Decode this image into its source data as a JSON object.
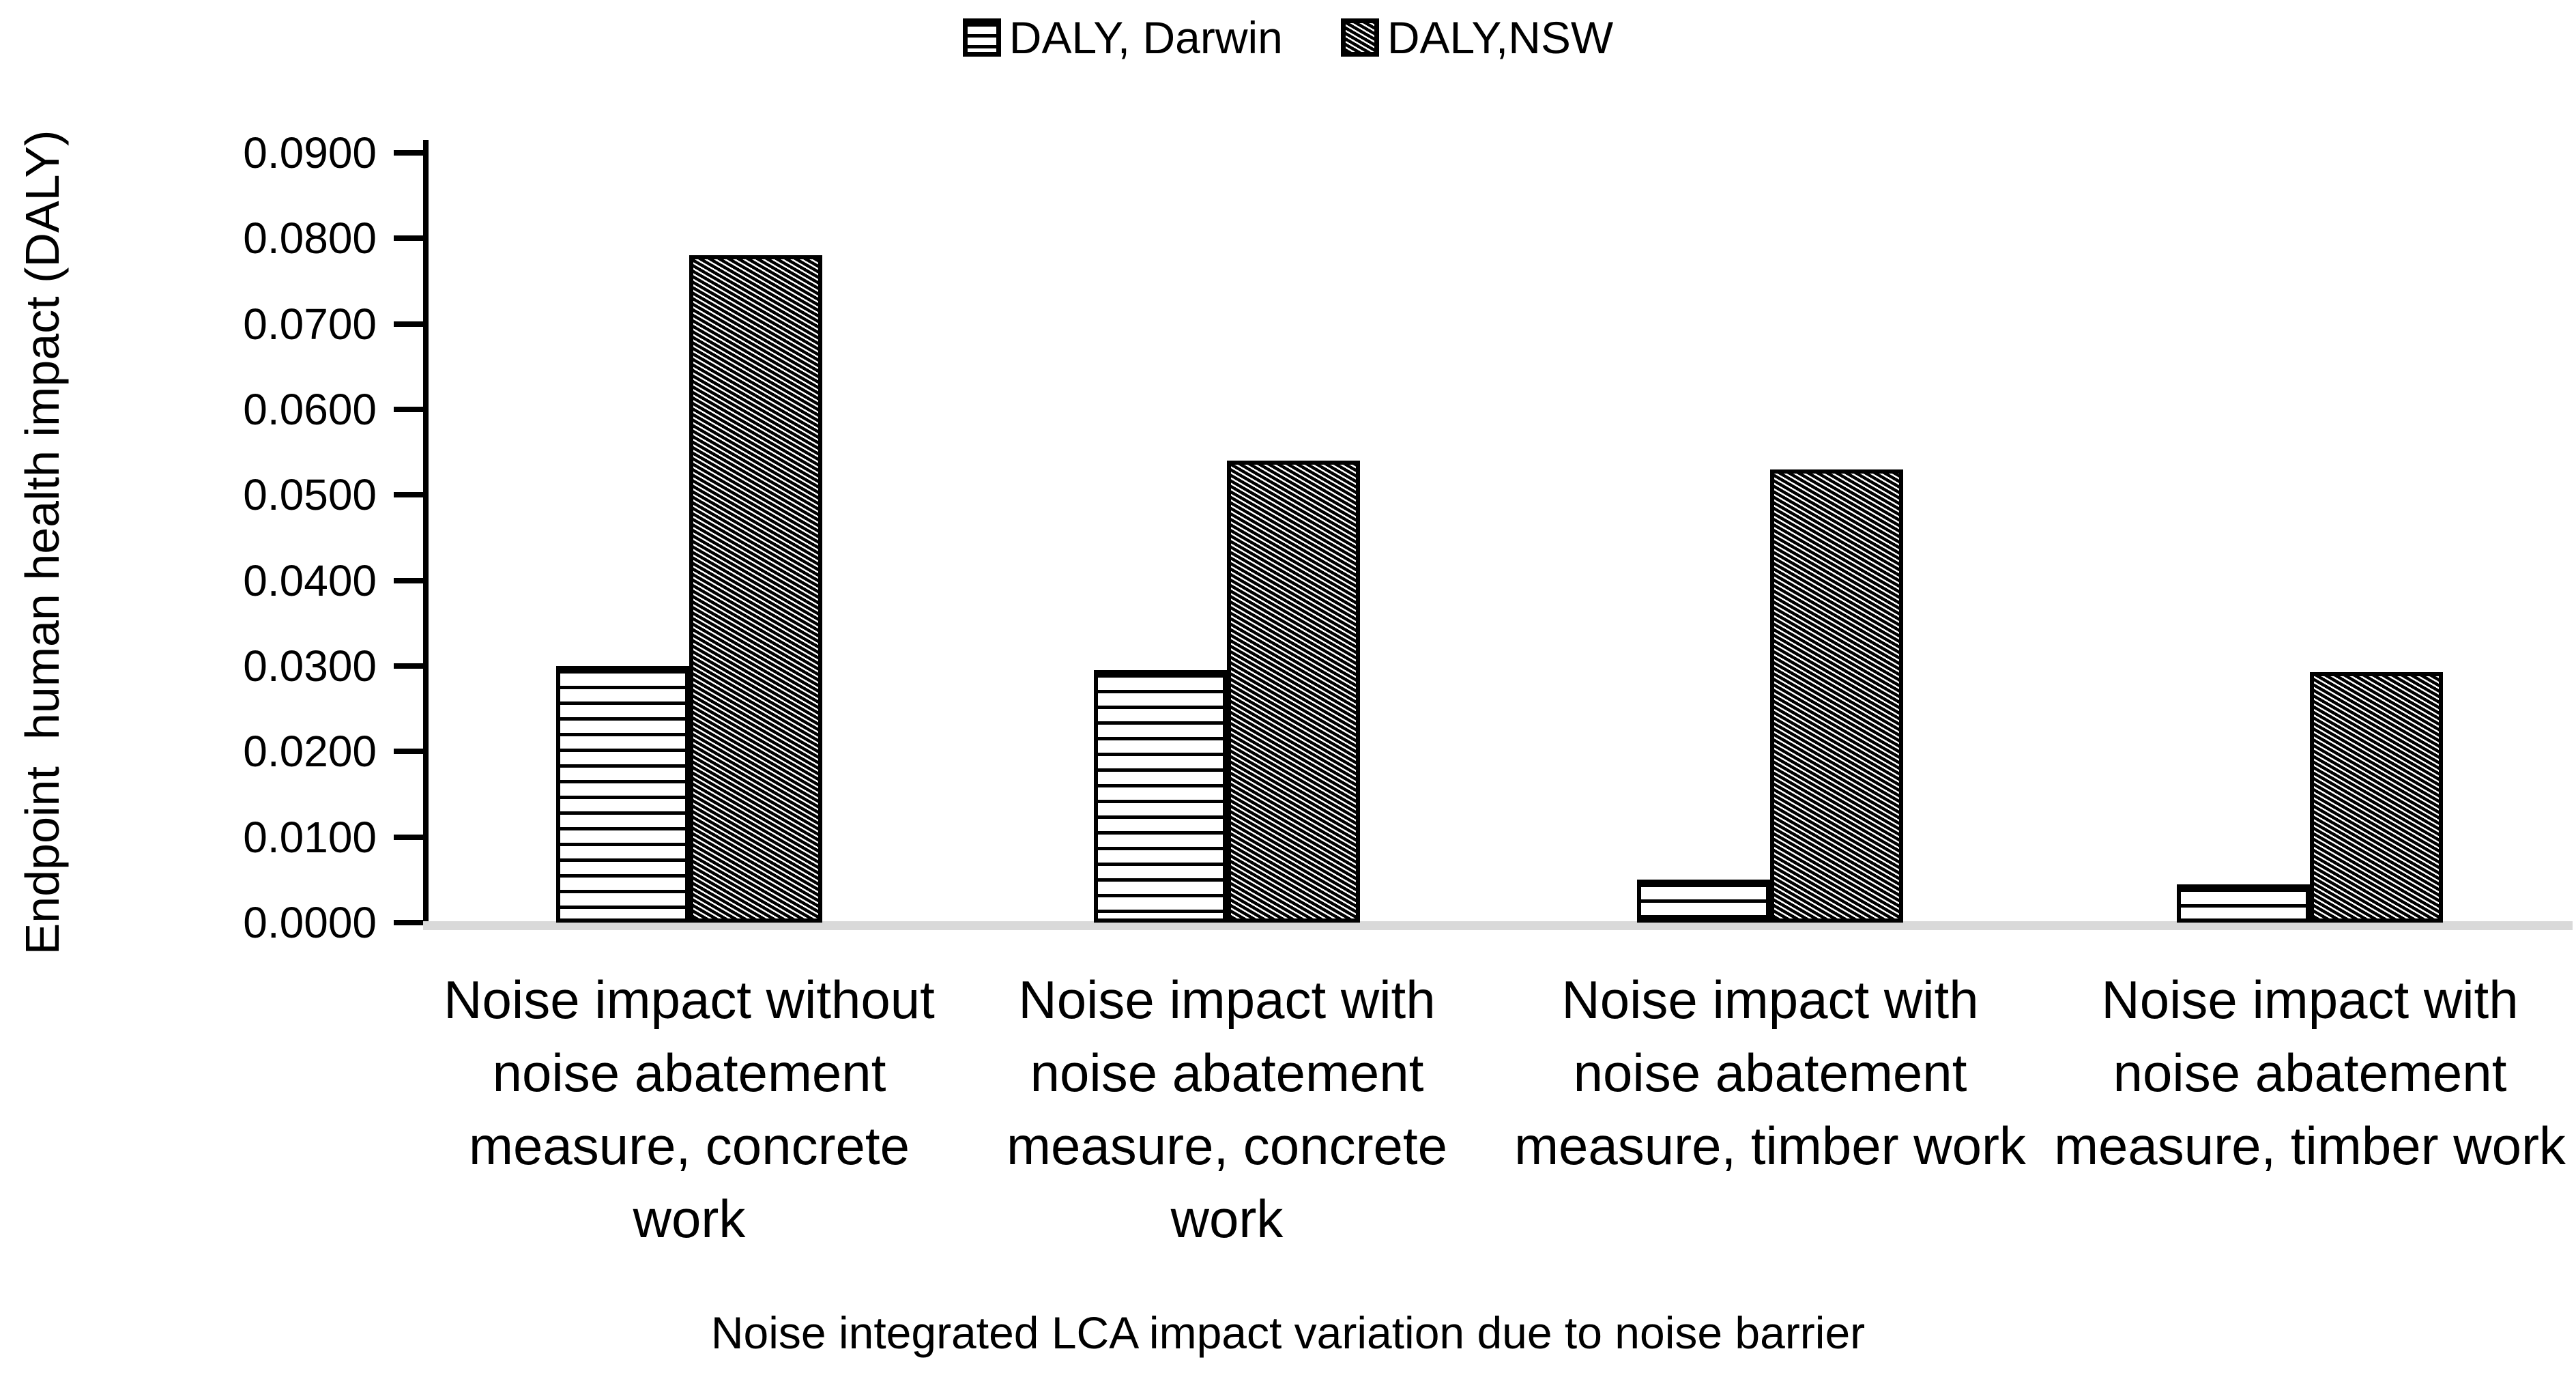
{
  "legend": [
    {
      "label": "DALY, Darwin",
      "pattern": "horizontal-stripes"
    },
    {
      "label": "DALY,NSW",
      "pattern": "diagonal-stripes"
    }
  ],
  "axes": {
    "y_title": "Endpoint  human health impact (DALY)",
    "x_title": "Noise integrated LCA impact variation due to noise barrier",
    "y_ticks": [
      "0.0900",
      "0.0800",
      "0.0700",
      "0.0600",
      "0.0500",
      "0.0400",
      "0.0300",
      "0.0200",
      "0.0100",
      "0.0000"
    ]
  },
  "chart_data": {
    "type": "bar",
    "title": "Noise integrated LCA impact variation due to noise barrier",
    "xlabel": "Noise integrated LCA impact variation due to noise barrier",
    "ylabel": "Endpoint  human health impact (DALY)",
    "ylim": [
      0,
      0.09
    ],
    "ytick_step": 0.01,
    "grid": false,
    "legend_position": "top",
    "categories": [
      "Noise impact without\nnoise abatement\nmeasure, concrete\nwork",
      "Noise impact with\nnoise abatement\nmeasure, concrete\nwork",
      "Noise impact with\nnoise abatement\nmeasure, timber work",
      "Noise impact with\nnoise abatement\nmeasure, timber work"
    ],
    "series": [
      {
        "name": "DALY, Darwin",
        "pattern": "horizontal-stripes",
        "values": [
          0.03,
          0.0295,
          0.005,
          0.0045
        ]
      },
      {
        "name": "DALY,NSW",
        "pattern": "diagonal-stripes",
        "values": [
          0.078,
          0.054,
          0.053,
          0.0293
        ]
      }
    ]
  }
}
